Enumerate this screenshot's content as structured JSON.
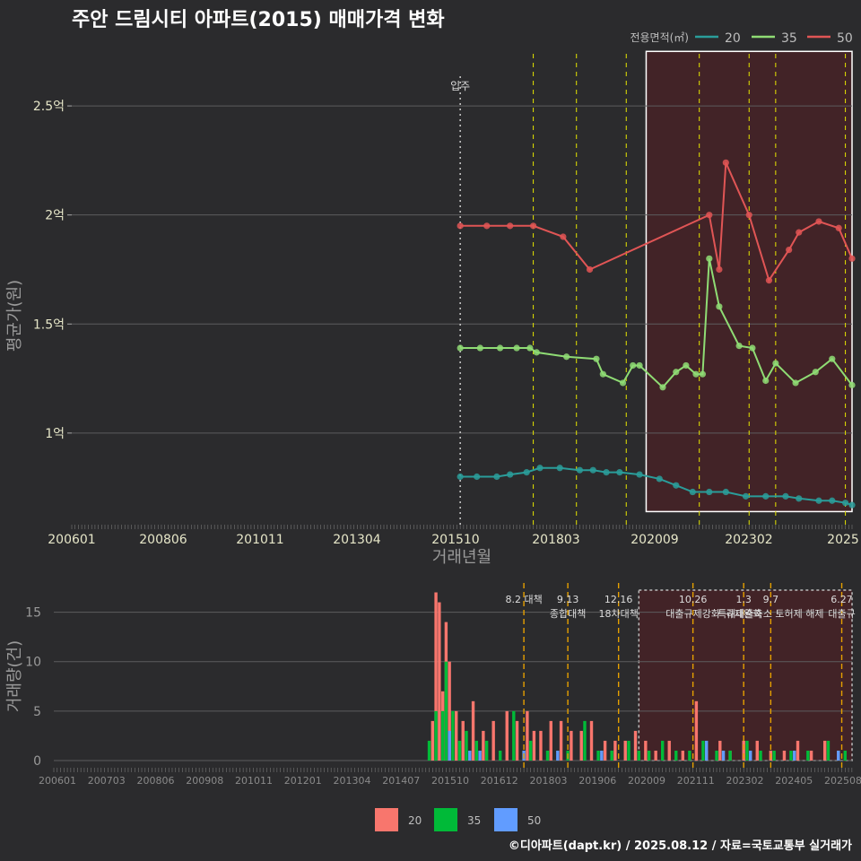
{
  "chart_data": [
    {
      "type": "line",
      "title": "주안 드림시티 아파트(2015) 매매가격 변화",
      "xlabel": "거래년월",
      "ylabel": "평균가(원)",
      "x_tick_labels": [
        "200601",
        "200806",
        "201011",
        "201304",
        "201510",
        "201803",
        "202009",
        "202302",
        "2025"
      ],
      "y_ticks": [
        {
          "value": 1.0,
          "label": "1억"
        },
        {
          "value": 1.5,
          "label": "1.5억"
        },
        {
          "value": 2.0,
          "label": "2억"
        },
        {
          "value": 2.5,
          "label": "2.5억"
        }
      ],
      "y_unit": "억원",
      "ylim": [
        0.58,
        2.78
      ],
      "xlim": [
        "2006-01",
        "2025-08"
      ],
      "legend": {
        "title": "전용면적(㎡)",
        "position": "top-right",
        "entries": [
          "20",
          "35",
          "50"
        ]
      },
      "move_in": {
        "label": "입주",
        "x": "2015-10"
      },
      "policy_lines": [
        "2017-08",
        "2018-09",
        "2019-12",
        "2021-10",
        "2023-01",
        "2023-09",
        "2025-06"
      ],
      "highlight_period": {
        "from": "2020-06",
        "to": "2025-08"
      },
      "series": [
        {
          "name": "20",
          "color": "#2a9d9a",
          "x": [
            "2015-10",
            "2016-03",
            "2016-09",
            "2017-01",
            "2017-06",
            "2017-10",
            "2018-04",
            "2018-10",
            "2019-02",
            "2019-06",
            "2019-10",
            "2020-04",
            "2020-10",
            "2021-03",
            "2021-08",
            "2022-01",
            "2022-06",
            "2022-12",
            "2023-06",
            "2023-12",
            "2024-04",
            "2024-10",
            "2025-02",
            "2025-06",
            "2025-08"
          ],
          "y": [
            0.8,
            0.8,
            0.8,
            0.81,
            0.82,
            0.84,
            0.84,
            0.83,
            0.83,
            0.82,
            0.82,
            0.81,
            0.79,
            0.76,
            0.73,
            0.73,
            0.73,
            0.71,
            0.71,
            0.71,
            0.7,
            0.69,
            0.69,
            0.68,
            0.67
          ]
        },
        {
          "name": "35",
          "color": "#8fdc74",
          "x": [
            "2015-10",
            "2016-04",
            "2016-10",
            "2017-03",
            "2017-07",
            "2017-09",
            "2018-06",
            "2019-03",
            "2019-05",
            "2019-11",
            "2020-02",
            "2020-04",
            "2020-11",
            "2021-03",
            "2021-06",
            "2021-09",
            "2021-11",
            "2022-01",
            "2022-04",
            "2022-10",
            "2023-02",
            "2023-06",
            "2023-09",
            "2024-03",
            "2024-09",
            "2025-02",
            "2025-08"
          ],
          "y": [
            1.39,
            1.39,
            1.39,
            1.39,
            1.39,
            1.37,
            1.35,
            1.34,
            1.27,
            1.23,
            1.31,
            1.31,
            1.21,
            1.28,
            1.31,
            1.27,
            1.27,
            1.8,
            1.58,
            1.4,
            1.39,
            1.24,
            1.32,
            1.23,
            1.28,
            1.34,
            1.22
          ]
        },
        {
          "name": "50",
          "color": "#e05555",
          "x": [
            "2015-10",
            "2016-06",
            "2017-01",
            "2017-08",
            "2018-05",
            "2019-01",
            "2022-01",
            "2022-04",
            "2022-06",
            "2023-01",
            "2023-07",
            "2024-01",
            "2024-04",
            "2024-10",
            "2025-04",
            "2025-08"
          ],
          "y": [
            1.95,
            1.95,
            1.95,
            1.95,
            1.9,
            1.75,
            2.0,
            1.75,
            2.24,
            2.0,
            1.7,
            1.84,
            1.92,
            1.97,
            1.94,
            1.8
          ]
        }
      ]
    },
    {
      "type": "bar",
      "ylabel": "거래량(건)",
      "x_tick_labels": [
        "200601",
        "200703",
        "200806",
        "200908",
        "201011",
        "201201",
        "201304",
        "201407",
        "201510",
        "201612",
        "201803",
        "201906",
        "202009",
        "202111",
        "202302",
        "202405",
        "202508"
      ],
      "y_ticks": [
        0,
        5,
        10,
        15
      ],
      "ylim": [
        0,
        17.5
      ],
      "legend": {
        "position": "bottom",
        "entries": [
          "20",
          "35",
          "50"
        ],
        "colors": [
          "#f8766d",
          "#00ba38",
          "#619cff"
        ]
      },
      "events": [
        {
          "date": "2017-08",
          "label_lines": [
            "8.2 대책"
          ]
        },
        {
          "date": "2018-09",
          "label_lines": [
            "9.13",
            "종합대책"
          ]
        },
        {
          "date": "2019-12",
          "label_lines": [
            "12.16",
            "18차대책"
          ]
        },
        {
          "date": "2021-10",
          "label_lines": [
            "10.26",
            "대출규제강화"
          ]
        },
        {
          "date": "2023-01",
          "label_lines": [
            "1.3",
            "규제완화"
          ]
        },
        {
          "date": "2023-09",
          "label_lines": [
            "9.7",
            "특례대출축소 토허제 해제"
          ]
        },
        {
          "date": "2025-06",
          "label_lines": [
            "6.27",
            "대출규"
          ]
        }
      ],
      "highlight_period": {
        "from": "2020-06",
        "to": "2025-08"
      },
      "series": [
        {
          "name": "20",
          "x": [
            "2015-05",
            "2015-06",
            "2015-07",
            "2015-08",
            "2015-09",
            "2015-10",
            "2015-12",
            "2016-02",
            "2016-05",
            "2016-08",
            "2016-11",
            "2017-03",
            "2017-06",
            "2017-09",
            "2017-11",
            "2018-01",
            "2018-04",
            "2018-07",
            "2018-10",
            "2019-01",
            "2019-04",
            "2019-08",
            "2019-11",
            "2020-02",
            "2020-05",
            "2020-08",
            "2020-11",
            "2021-03",
            "2021-07",
            "2021-11",
            "2022-02",
            "2022-06",
            "2022-09",
            "2023-01",
            "2023-05",
            "2023-09",
            "2024-01",
            "2024-05",
            "2024-09",
            "2025-01",
            "2025-05"
          ],
          "values": [
            4,
            17,
            16,
            7,
            14,
            10,
            5,
            4,
            6,
            3,
            4,
            5,
            4,
            5,
            3,
            3,
            4,
            4,
            3,
            3,
            4,
            2,
            2,
            2,
            3,
            2,
            1,
            2,
            1,
            6,
            1,
            2,
            1,
            2,
            2,
            1,
            1,
            2,
            1,
            2,
            1
          ]
        },
        {
          "name": "35",
          "x": [
            "2015-04",
            "2015-06",
            "2015-08",
            "2015-09",
            "2015-11",
            "2016-01",
            "2016-03",
            "2016-06",
            "2016-09",
            "2017-01",
            "2017-05",
            "2017-10",
            "2018-03",
            "2018-09",
            "2019-02",
            "2019-06",
            "2019-10",
            "2020-03",
            "2020-06",
            "2020-09",
            "2021-01",
            "2021-05",
            "2021-09",
            "2022-01",
            "2022-05",
            "2022-09",
            "2023-02",
            "2023-06",
            "2023-10",
            "2024-03",
            "2024-08",
            "2025-02",
            "2025-07"
          ],
          "values": [
            2,
            5,
            5,
            10,
            5,
            2,
            3,
            2,
            2,
            1,
            5,
            2,
            1,
            1,
            4,
            1,
            1,
            2,
            1,
            1,
            2,
            1,
            1,
            2,
            1,
            1,
            2,
            1,
            1,
            1,
            1,
            2,
            1
          ]
        },
        {
          "name": "50",
          "x": [
            "2015-10",
            "2016-04",
            "2016-07",
            "2017-08",
            "2018-06",
            "2019-07",
            "2022-02",
            "2022-07",
            "2023-03",
            "2024-04",
            "2025-05"
          ],
          "values": [
            3,
            1,
            1,
            1,
            1,
            1,
            2,
            1,
            1,
            1,
            1
          ]
        }
      ]
    }
  ],
  "footer": "©디아파트(dapt.kr) / 2025.08.12 / 자료=국토교통부 실거래가"
}
